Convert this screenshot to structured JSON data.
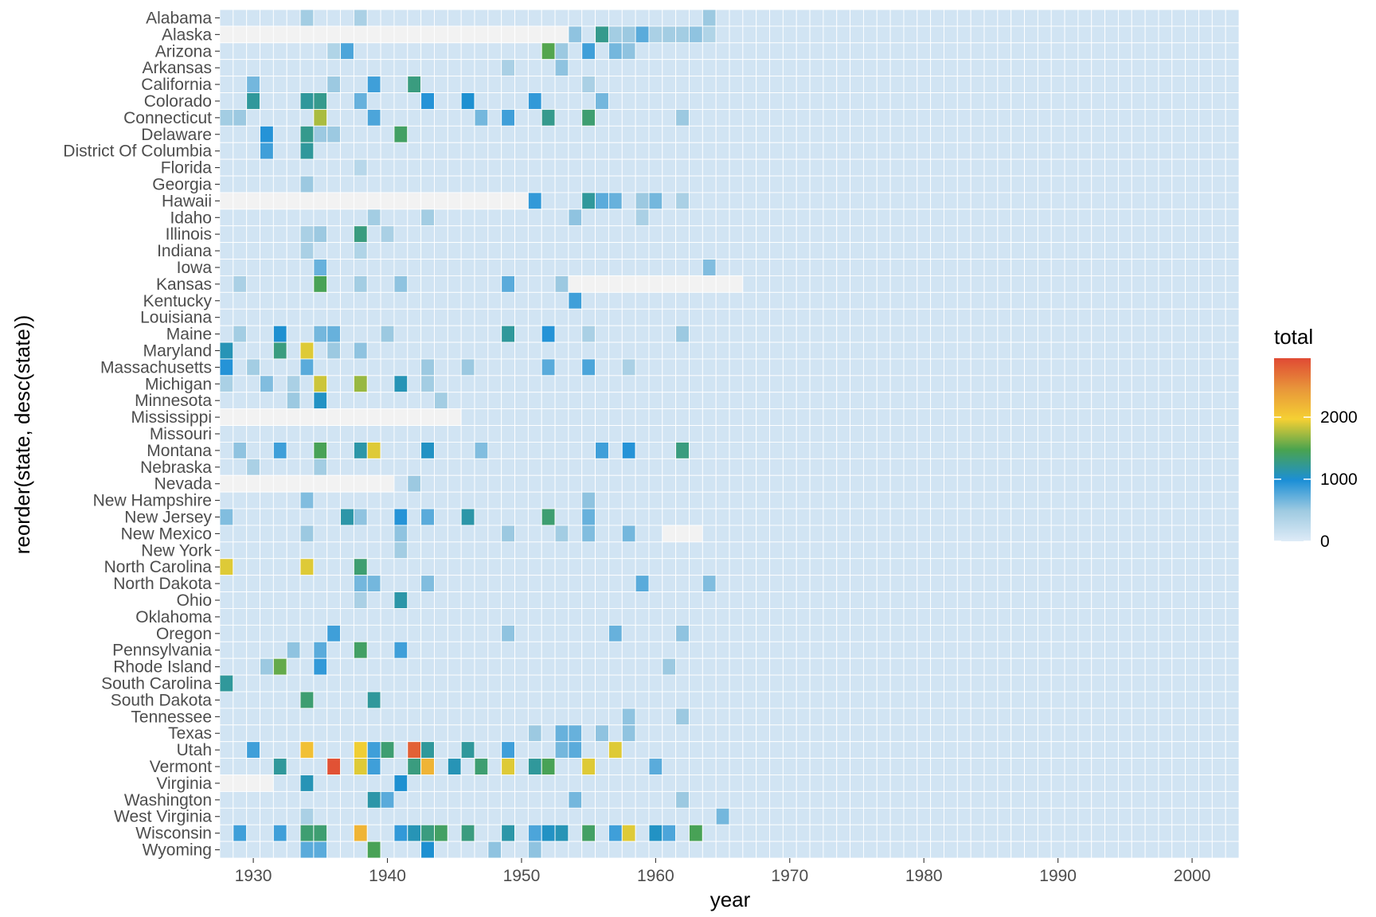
{
  "chart_data": {
    "type": "heatmap",
    "title": "",
    "xlabel": "year",
    "ylabel": "reorder(state, desc(state))",
    "x_range": [
      1928,
      2003
    ],
    "x_ticks": [
      1930,
      1940,
      1950,
      1960,
      1970,
      1980,
      1990,
      2000
    ],
    "states": [
      "Alabama",
      "Alaska",
      "Arizona",
      "Arkansas",
      "California",
      "Colorado",
      "Connecticut",
      "Delaware",
      "District Of Columbia",
      "Florida",
      "Georgia",
      "Hawaii",
      "Idaho",
      "Illinois",
      "Indiana",
      "Iowa",
      "Kansas",
      "Kentucky",
      "Louisiana",
      "Maine",
      "Maryland",
      "Massachusetts",
      "Michigan",
      "Minnesota",
      "Mississippi",
      "Missouri",
      "Montana",
      "Nebraska",
      "Nevada",
      "New Hampshire",
      "New Jersey",
      "New Mexico",
      "New York",
      "North Carolina",
      "North Dakota",
      "Ohio",
      "Oklahoma",
      "Oregon",
      "Pennsylvania",
      "Rhode Island",
      "South Carolina",
      "South Dakota",
      "Tennessee",
      "Texas",
      "Utah",
      "Vermont",
      "Virginia",
      "Washington",
      "West Virginia",
      "Wisconsin",
      "Wyoming"
    ],
    "background_total": 100,
    "missing": [
      {
        "state": "Alaska",
        "from": 1928,
        "to": 1953
      },
      {
        "state": "Hawaii",
        "from": 1928,
        "to": 1950
      },
      {
        "state": "Mississippi",
        "from": 1928,
        "to": 1945
      },
      {
        "state": "Nevada",
        "from": 1928,
        "to": 1940
      },
      {
        "state": "Virginia",
        "from": 1928,
        "to": 1931
      },
      {
        "state": "Kansas",
        "from": 1954,
        "to": 1966
      },
      {
        "state": "New Mexico",
        "from": 1961,
        "to": 1963
      }
    ],
    "values": [
      [
        "Alabama",
        1934,
        450
      ],
      [
        "Alabama",
        1938,
        400
      ],
      [
        "Alabama",
        1964,
        500
      ],
      [
        "Alaska",
        1954,
        550
      ],
      [
        "Alaska",
        1956,
        1250
      ],
      [
        "Alaska",
        1957,
        450
      ],
      [
        "Alaska",
        1958,
        500
      ],
      [
        "Alaska",
        1959,
        750
      ],
      [
        "Alaska",
        1960,
        400
      ],
      [
        "Alaska",
        1961,
        450
      ],
      [
        "Alaska",
        1962,
        450
      ],
      [
        "Alaska",
        1963,
        550
      ],
      [
        "Alaska",
        1964,
        350
      ],
      [
        "Arizona",
        1936,
        350
      ],
      [
        "Arizona",
        1937,
        800
      ],
      [
        "Arizona",
        1952,
        1500
      ],
      [
        "Arizona",
        1953,
        500
      ],
      [
        "Arizona",
        1955,
        850
      ],
      [
        "Arizona",
        1957,
        650
      ],
      [
        "Arizona",
        1958,
        550
      ],
      [
        "Arkansas",
        1949,
        400
      ],
      [
        "Arkansas",
        1953,
        550
      ],
      [
        "California",
        1930,
        650
      ],
      [
        "California",
        1936,
        500
      ],
      [
        "California",
        1939,
        850
      ],
      [
        "California",
        1942,
        1300
      ],
      [
        "California",
        1955,
        400
      ],
      [
        "Colorado",
        1930,
        1200
      ],
      [
        "Colorado",
        1934,
        1200
      ],
      [
        "Colorado",
        1935,
        1250
      ],
      [
        "Colorado",
        1938,
        700
      ],
      [
        "Colorado",
        1943,
        950
      ],
      [
        "Colorado",
        1946,
        1000
      ],
      [
        "Colorado",
        1951,
        900
      ],
      [
        "Colorado",
        1956,
        650
      ],
      [
        "Connecticut",
        1928,
        450
      ],
      [
        "Connecticut",
        1929,
        500
      ],
      [
        "Connecticut",
        1935,
        1750
      ],
      [
        "Connecticut",
        1939,
        800
      ],
      [
        "Connecticut",
        1947,
        650
      ],
      [
        "Connecticut",
        1949,
        850
      ],
      [
        "Connecticut",
        1952,
        1250
      ],
      [
        "Connecticut",
        1955,
        1350
      ],
      [
        "Connecticut",
        1962,
        500
      ],
      [
        "Delaware",
        1931,
        950
      ],
      [
        "Delaware",
        1934,
        1250
      ],
      [
        "Delaware",
        1935,
        500
      ],
      [
        "Delaware",
        1936,
        500
      ],
      [
        "Delaware",
        1941,
        1400
      ],
      [
        "District Of Columbia",
        1931,
        850
      ],
      [
        "District Of Columbia",
        1934,
        1200
      ],
      [
        "Florida",
        1938,
        300
      ],
      [
        "Georgia",
        1934,
        500
      ],
      [
        "Hawaii",
        1951,
        900
      ],
      [
        "Hawaii",
        1955,
        1200
      ],
      [
        "Hawaii",
        1956,
        750
      ],
      [
        "Hawaii",
        1957,
        700
      ],
      [
        "Hawaii",
        1959,
        500
      ],
      [
        "Hawaii",
        1960,
        650
      ],
      [
        "Hawaii",
        1962,
        400
      ],
      [
        "Idaho",
        1939,
        450
      ],
      [
        "Idaho",
        1943,
        450
      ],
      [
        "Idaho",
        1954,
        550
      ],
      [
        "Idaho",
        1959,
        400
      ],
      [
        "Illinois",
        1934,
        400
      ],
      [
        "Illinois",
        1935,
        500
      ],
      [
        "Illinois",
        1938,
        1300
      ],
      [
        "Illinois",
        1940,
        400
      ],
      [
        "Indiana",
        1934,
        400
      ],
      [
        "Indiana",
        1938,
        350
      ],
      [
        "Iowa",
        1935,
        700
      ],
      [
        "Iowa",
        1964,
        600
      ],
      [
        "Kansas",
        1929,
        400
      ],
      [
        "Kansas",
        1935,
        1450
      ],
      [
        "Kansas",
        1938,
        450
      ],
      [
        "Kansas",
        1941,
        550
      ],
      [
        "Kansas",
        1949,
        750
      ],
      [
        "Kansas",
        1953,
        500
      ],
      [
        "Kentucky",
        1954,
        850
      ],
      [
        "Maine",
        1929,
        450
      ],
      [
        "Maine",
        1932,
        1000
      ],
      [
        "Maine",
        1935,
        650
      ],
      [
        "Maine",
        1936,
        700
      ],
      [
        "Maine",
        1940,
        500
      ],
      [
        "Maine",
        1949,
        1200
      ],
      [
        "Maine",
        1952,
        950
      ],
      [
        "Maine",
        1955,
        400
      ],
      [
        "Maine",
        1962,
        500
      ],
      [
        "Maryland",
        1928,
        1100
      ],
      [
        "Maryland",
        1932,
        1300
      ],
      [
        "Maryland",
        1934,
        1900
      ],
      [
        "Maryland",
        1936,
        500
      ],
      [
        "Maryland",
        1938,
        550
      ],
      [
        "Massachusetts",
        1928,
        950
      ],
      [
        "Massachusetts",
        1930,
        450
      ],
      [
        "Massachusetts",
        1934,
        750
      ],
      [
        "Massachusetts",
        1943,
        500
      ],
      [
        "Massachusetts",
        1946,
        500
      ],
      [
        "Massachusetts",
        1952,
        750
      ],
      [
        "Massachusetts",
        1955,
        800
      ],
      [
        "Massachusetts",
        1958,
        400
      ],
      [
        "Michigan",
        1928,
        400
      ],
      [
        "Michigan",
        1931,
        600
      ],
      [
        "Michigan",
        1933,
        400
      ],
      [
        "Michigan",
        1935,
        1850
      ],
      [
        "Michigan",
        1938,
        1700
      ],
      [
        "Michigan",
        1941,
        1100
      ],
      [
        "Michigan",
        1943,
        450
      ],
      [
        "Minnesota",
        1933,
        500
      ],
      [
        "Minnesota",
        1935,
        1050
      ],
      [
        "Minnesota",
        1944,
        450
      ],
      [
        "Montana",
        1929,
        550
      ],
      [
        "Montana",
        1932,
        850
      ],
      [
        "Montana",
        1935,
        1450
      ],
      [
        "Montana",
        1938,
        1150
      ],
      [
        "Montana",
        1939,
        1900
      ],
      [
        "Montana",
        1943,
        1050
      ],
      [
        "Montana",
        1947,
        600
      ],
      [
        "Montana",
        1956,
        850
      ],
      [
        "Montana",
        1958,
        950
      ],
      [
        "Montana",
        1962,
        1300
      ],
      [
        "Nebraska",
        1930,
        400
      ],
      [
        "Nebraska",
        1935,
        450
      ],
      [
        "Nevada",
        1942,
        500
      ],
      [
        "New Hampshire",
        1934,
        600
      ],
      [
        "New Hampshire",
        1955,
        550
      ],
      [
        "New Jersey",
        1928,
        600
      ],
      [
        "New Jersey",
        1937,
        1150
      ],
      [
        "New Jersey",
        1938,
        550
      ],
      [
        "New Jersey",
        1941,
        950
      ],
      [
        "New Jersey",
        1943,
        750
      ],
      [
        "New Jersey",
        1946,
        1150
      ],
      [
        "New Jersey",
        1952,
        1350
      ],
      [
        "New Jersey",
        1955,
        700
      ],
      [
        "New Mexico",
        1934,
        500
      ],
      [
        "New Mexico",
        1941,
        550
      ],
      [
        "New Mexico",
        1949,
        500
      ],
      [
        "New Mexico",
        1953,
        450
      ],
      [
        "New Mexico",
        1955,
        600
      ],
      [
        "New Mexico",
        1958,
        650
      ],
      [
        "New York",
        1941,
        450
      ],
      [
        "North Carolina",
        1928,
        1900
      ],
      [
        "North Carolina",
        1934,
        1900
      ],
      [
        "North Carolina",
        1938,
        1350
      ],
      [
        "North Dakota",
        1938,
        650
      ],
      [
        "North Dakota",
        1939,
        650
      ],
      [
        "North Dakota",
        1943,
        600
      ],
      [
        "North Dakota",
        1959,
        750
      ],
      [
        "North Dakota",
        1964,
        600
      ],
      [
        "Ohio",
        1938,
        400
      ],
      [
        "Ohio",
        1941,
        1150
      ],
      [
        "Oregon",
        1936,
        850
      ],
      [
        "Oregon",
        1949,
        550
      ],
      [
        "Oregon",
        1957,
        700
      ],
      [
        "Oregon",
        1962,
        550
      ],
      [
        "Pennsylvania",
        1933,
        550
      ],
      [
        "Pennsylvania",
        1935,
        750
      ],
      [
        "Pennsylvania",
        1938,
        1400
      ],
      [
        "Pennsylvania",
        1941,
        850
      ],
      [
        "Rhode Island",
        1931,
        500
      ],
      [
        "Rhode Island",
        1932,
        1550
      ],
      [
        "Rhode Island",
        1935,
        900
      ],
      [
        "Rhode Island",
        1961,
        500
      ],
      [
        "South Carolina",
        1928,
        1200
      ],
      [
        "South Dakota",
        1934,
        1350
      ],
      [
        "South Dakota",
        1939,
        1200
      ],
      [
        "Tennessee",
        1958,
        550
      ],
      [
        "Tennessee",
        1962,
        500
      ],
      [
        "Texas",
        1951,
        500
      ],
      [
        "Texas",
        1953,
        700
      ],
      [
        "Texas",
        1954,
        700
      ],
      [
        "Texas",
        1956,
        550
      ],
      [
        "Texas",
        1958,
        550
      ],
      [
        "Utah",
        1930,
        850
      ],
      [
        "Utah",
        1934,
        2100
      ],
      [
        "Utah",
        1938,
        1950
      ],
      [
        "Utah",
        1939,
        850
      ],
      [
        "Utah",
        1940,
        1350
      ],
      [
        "Utah",
        1942,
        2800
      ],
      [
        "Utah",
        1943,
        1200
      ],
      [
        "Utah",
        1946,
        1200
      ],
      [
        "Utah",
        1949,
        850
      ],
      [
        "Utah",
        1953,
        650
      ],
      [
        "Utah",
        1954,
        750
      ],
      [
        "Utah",
        1957,
        1900
      ],
      [
        "Vermont",
        1932,
        1200
      ],
      [
        "Vermont",
        1936,
        2900
      ],
      [
        "Vermont",
        1938,
        1900
      ],
      [
        "Vermont",
        1939,
        850
      ],
      [
        "Vermont",
        1942,
        1300
      ],
      [
        "Vermont",
        1943,
        2200
      ],
      [
        "Vermont",
        1945,
        1100
      ],
      [
        "Vermont",
        1947,
        1350
      ],
      [
        "Vermont",
        1949,
        1900
      ],
      [
        "Vermont",
        1951,
        1200
      ],
      [
        "Vermont",
        1952,
        1450
      ],
      [
        "Vermont",
        1955,
        1900
      ],
      [
        "Vermont",
        1960,
        750
      ],
      [
        "Virginia",
        1934,
        1100
      ],
      [
        "Virginia",
        1941,
        1000
      ],
      [
        "Washington",
        1939,
        1150
      ],
      [
        "Washington",
        1940,
        750
      ],
      [
        "Washington",
        1954,
        650
      ],
      [
        "Washington",
        1962,
        500
      ],
      [
        "West Virginia",
        1934,
        400
      ],
      [
        "West Virginia",
        1965,
        650
      ],
      [
        "Wisconsin",
        1929,
        850
      ],
      [
        "Wisconsin",
        1932,
        850
      ],
      [
        "Wisconsin",
        1934,
        1350
      ],
      [
        "Wisconsin",
        1935,
        1350
      ],
      [
        "Wisconsin",
        1938,
        2200
      ],
      [
        "Wisconsin",
        1941,
        900
      ],
      [
        "Wisconsin",
        1942,
        1100
      ],
      [
        "Wisconsin",
        1943,
        1300
      ],
      [
        "Wisconsin",
        1944,
        1400
      ],
      [
        "Wisconsin",
        1946,
        1300
      ],
      [
        "Wisconsin",
        1949,
        1150
      ],
      [
        "Wisconsin",
        1951,
        800
      ],
      [
        "Wisconsin",
        1952,
        1050
      ],
      [
        "Wisconsin",
        1953,
        1100
      ],
      [
        "Wisconsin",
        1955,
        1400
      ],
      [
        "Wisconsin",
        1957,
        850
      ],
      [
        "Wisconsin",
        1958,
        1900
      ],
      [
        "Wisconsin",
        1960,
        1050
      ],
      [
        "Wisconsin",
        1961,
        800
      ],
      [
        "Wisconsin",
        1963,
        1450
      ],
      [
        "Wyoming",
        1934,
        750
      ],
      [
        "Wyoming",
        1935,
        750
      ],
      [
        "Wyoming",
        1939,
        1450
      ],
      [
        "Wyoming",
        1943,
        1000
      ],
      [
        "Wyoming",
        1948,
        550
      ],
      [
        "Wyoming",
        1951,
        550
      ]
    ],
    "legend": {
      "title": "total",
      "ticks": [
        0,
        1000,
        2000
      ],
      "max": 2950,
      "position": "right",
      "colors": [
        "#deebf7",
        "#9ecae1",
        "#1c8fd6",
        "#4aa34f",
        "#f5d033",
        "#e8963a",
        "#e04a34"
      ]
    },
    "grid": true,
    "panel_background": "#ebebeb",
    "missing_color": "#f2f2f2",
    "tile_border_color": "#ffffff"
  }
}
